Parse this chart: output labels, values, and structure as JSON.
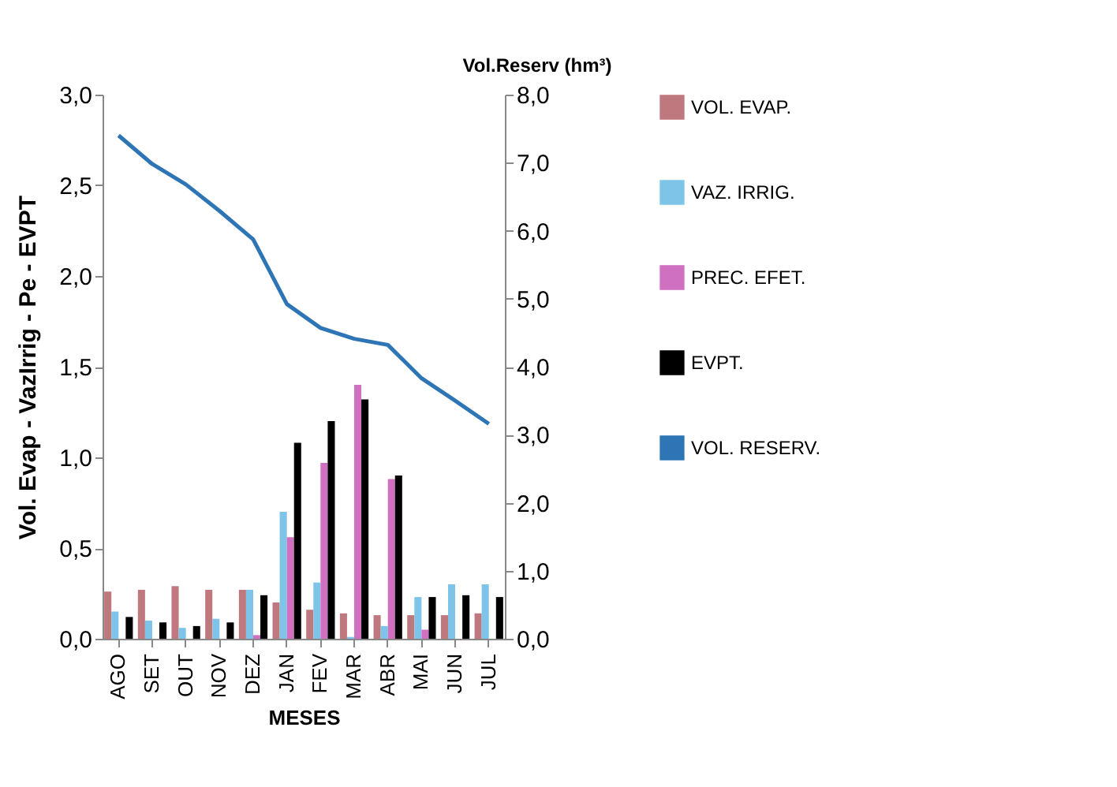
{
  "chart_data": {
    "type": "bar",
    "xlabel": "MESES",
    "ylabel": "Vol. Evap - VazIrrig - Pe - EVPT",
    "y2label": "Vol.Reserv (hm³)",
    "categories": [
      "AGO",
      "SET",
      "OUT",
      "NOV",
      "DEZ",
      "JAN",
      "FEV",
      "MAR",
      "ABR",
      "MAI",
      "JUN",
      "JUL"
    ],
    "series": [
      {
        "name": "VOL. EVAP.",
        "color": "#c0787f",
        "values": [
          0.26,
          0.27,
          0.29,
          0.27,
          0.27,
          0.2,
          0.16,
          0.14,
          0.13,
          0.13,
          0.13,
          0.14
        ]
      },
      {
        "name": "VAZ. IRRIG.",
        "color": "#7ec4e8",
        "values": [
          0.15,
          0.1,
          0.06,
          0.11,
          0.27,
          0.7,
          0.31,
          0.01,
          0.07,
          0.23,
          0.3,
          0.3
        ]
      },
      {
        "name": "PREC. EFET.",
        "color": "#d070c0",
        "values": [
          0,
          0,
          0,
          0,
          0.02,
          0.56,
          0.97,
          1.4,
          0.88,
          0.05,
          0,
          0
        ]
      },
      {
        "name": "EVPT.",
        "color": "#000000",
        "values": [
          0.12,
          0.09,
          0.07,
          0.09,
          0.24,
          1.08,
          1.2,
          1.32,
          0.9,
          0.23,
          0.24,
          0.23
        ]
      },
      {
        "name": "VOL. RESERV.",
        "color": "#2e75b6",
        "type": "line",
        "axis": "y2",
        "values": [
          7.4,
          6.98,
          6.68,
          6.29,
          5.87,
          4.92,
          4.57,
          4.41,
          4.32,
          3.83,
          3.5,
          3.16
        ]
      }
    ],
    "ylim": [
      0,
      3
    ],
    "yticks": [
      {
        "value": 0,
        "label": "0,0"
      },
      {
        "value": 0.5,
        "label": "0,5"
      },
      {
        "value": 1,
        "label": "1,0"
      },
      {
        "value": 1.5,
        "label": "1,5"
      },
      {
        "value": 2,
        "label": "2,0"
      },
      {
        "value": 2.5,
        "label": "2,5"
      },
      {
        "value": 3,
        "label": "3,0"
      }
    ],
    "y2lim": [
      0,
      8
    ],
    "y2ticks": [
      {
        "value": 0,
        "label": "0,0"
      },
      {
        "value": 1,
        "label": "1,0"
      },
      {
        "value": 2,
        "label": "2,0"
      },
      {
        "value": 3,
        "label": "3,0"
      },
      {
        "value": 4,
        "label": "4,0"
      },
      {
        "value": 5,
        "label": "5,0"
      },
      {
        "value": 6,
        "label": "6,0"
      },
      {
        "value": 7,
        "label": "7,0"
      },
      {
        "value": 8,
        "label": "8,0"
      }
    ],
    "legend": "right",
    "grid": false
  }
}
